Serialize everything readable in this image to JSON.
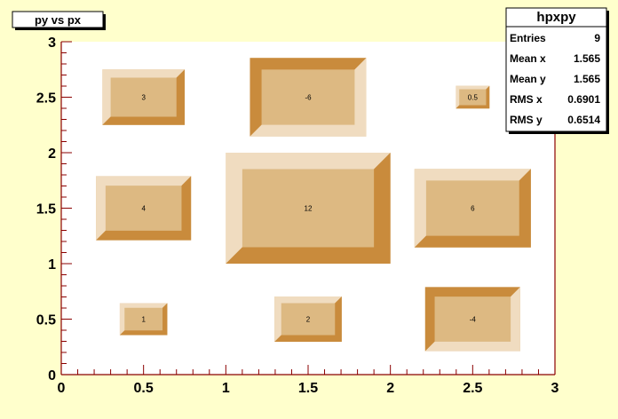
{
  "title": "py vs px",
  "stats": {
    "name": "hpxpy",
    "rows": [
      {
        "label": "Entries",
        "value": "9"
      },
      {
        "label": "Mean x",
        "value": "1.565"
      },
      {
        "label": "Mean y",
        "value": "1.565"
      },
      {
        "label": "RMS x",
        "value": "0.6901"
      },
      {
        "label": "RMS y",
        "value": "0.6514"
      }
    ]
  },
  "colors": {
    "background": "#ffffcc",
    "frame": "#ffffff",
    "axis": "#8b0000",
    "box_face": "#ddb982",
    "box_light": "#f0dcc0",
    "box_dark": "#c98b3c"
  },
  "chart_data": {
    "type": "lego-box 2D histogram",
    "xlim": [
      0,
      3
    ],
    "ylim": [
      0,
      3
    ],
    "x_ticks": [
      "0",
      "0.5",
      "1",
      "1.5",
      "2",
      "2.5",
      "3"
    ],
    "y_ticks": [
      "0",
      "0.5",
      "1",
      "1.5",
      "2",
      "2.5",
      "3"
    ],
    "x_bin_edges": [
      0,
      1,
      2,
      3
    ],
    "y_bin_edges": [
      0,
      1,
      2,
      3
    ],
    "cells": [
      {
        "x": 0.5,
        "y": 0.5,
        "value": 1
      },
      {
        "x": 1.5,
        "y": 0.5,
        "value": 2
      },
      {
        "x": 2.5,
        "y": 0.5,
        "value": -4
      },
      {
        "x": 0.5,
        "y": 1.5,
        "value": 4
      },
      {
        "x": 1.5,
        "y": 1.5,
        "value": 12
      },
      {
        "x": 2.5,
        "y": 1.5,
        "value": 6
      },
      {
        "x": 0.5,
        "y": 2.5,
        "value": 3
      },
      {
        "x": 1.5,
        "y": 2.5,
        "value": -6
      },
      {
        "x": 2.5,
        "y": 2.5,
        "value": 0.5
      }
    ]
  }
}
